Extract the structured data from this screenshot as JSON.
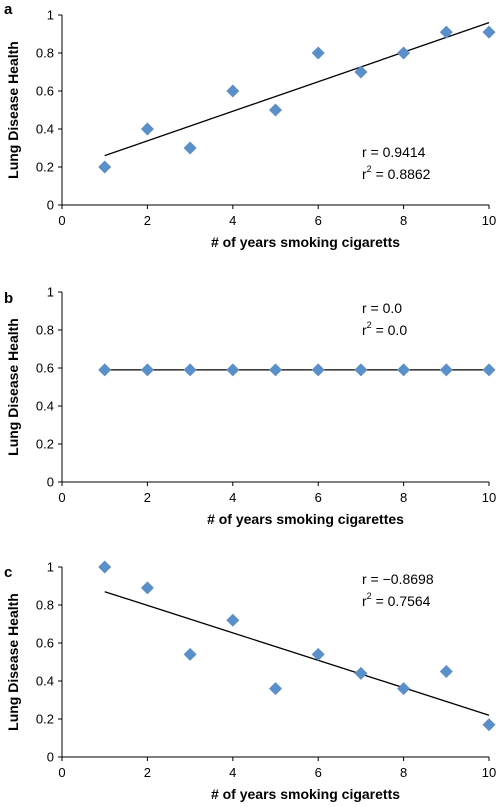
{
  "chart_data": [
    {
      "type": "scatter",
      "panel": "a",
      "xlabel": "# of years smoking cigaretts",
      "ylabel": "Lung Disease Health",
      "xlim": [
        0,
        10
      ],
      "ylim": [
        0,
        1
      ],
      "xticks": [
        "0",
        "2",
        "4",
        "6",
        "8",
        "10"
      ],
      "yticks": [
        "0",
        "0.2",
        "0.4",
        "0.6",
        "0.8",
        "1"
      ],
      "x": [
        1,
        2,
        3,
        4,
        5,
        6,
        7,
        8,
        9,
        10
      ],
      "y": [
        0.2,
        0.4,
        0.3,
        0.6,
        0.5,
        0.8,
        0.7,
        0.8,
        0.91,
        0.91
      ],
      "trendline": {
        "x": [
          1,
          10
        ],
        "y": [
          0.26,
          0.96
        ]
      },
      "annotation": {
        "r": "r = 0.9414",
        "r2_prefix": "r",
        "r2_sup": "2",
        "r2_suffix": " = 0.8862"
      },
      "marker_color": "#5b8fc9",
      "grid": false
    },
    {
      "type": "scatter",
      "panel": "b",
      "xlabel": "# of years smoking cigarettes",
      "ylabel": "Lung Disease Health",
      "xlim": [
        0,
        10
      ],
      "ylim": [
        0,
        1
      ],
      "xticks": [
        "0",
        "2",
        "4",
        "6",
        "8",
        "10"
      ],
      "yticks": [
        "0",
        "0.2",
        "0.4",
        "0.6",
        "0.8",
        "1"
      ],
      "x": [
        1,
        2,
        3,
        4,
        5,
        6,
        7,
        8,
        9,
        10
      ],
      "y": [
        0.59,
        0.59,
        0.59,
        0.59,
        0.59,
        0.59,
        0.59,
        0.59,
        0.59,
        0.59
      ],
      "trendline": {
        "x": [
          1,
          10
        ],
        "y": [
          0.59,
          0.59
        ]
      },
      "annotation": {
        "r": "r = 0.0",
        "r2_prefix": "r",
        "r2_sup": "2",
        "r2_suffix": " = 0.0"
      },
      "marker_color": "#5b8fc9",
      "grid": false
    },
    {
      "type": "scatter",
      "panel": "c",
      "xlabel": "# of years smoking cigaretts",
      "ylabel": "Lung Disease Health",
      "xlim": [
        0,
        10
      ],
      "ylim": [
        0,
        1
      ],
      "xticks": [
        "0",
        "2",
        "4",
        "6",
        "8",
        "10"
      ],
      "yticks": [
        "0",
        "0.2",
        "0.4",
        "0.6",
        "0.8",
        "1"
      ],
      "x": [
        1,
        2,
        3,
        4,
        5,
        6,
        7,
        8,
        9,
        10
      ],
      "y": [
        1.0,
        0.89,
        0.54,
        0.72,
        0.36,
        0.54,
        0.44,
        0.36,
        0.45,
        0.17
      ],
      "trendline": {
        "x": [
          1,
          10
        ],
        "y": [
          0.87,
          0.22
        ]
      },
      "annotation": {
        "r": "r = −0.8698",
        "r2_prefix": "r",
        "r2_sup": "2",
        "r2_suffix": " = 0.7564"
      },
      "marker_color": "#5b8fc9",
      "grid": false
    }
  ]
}
